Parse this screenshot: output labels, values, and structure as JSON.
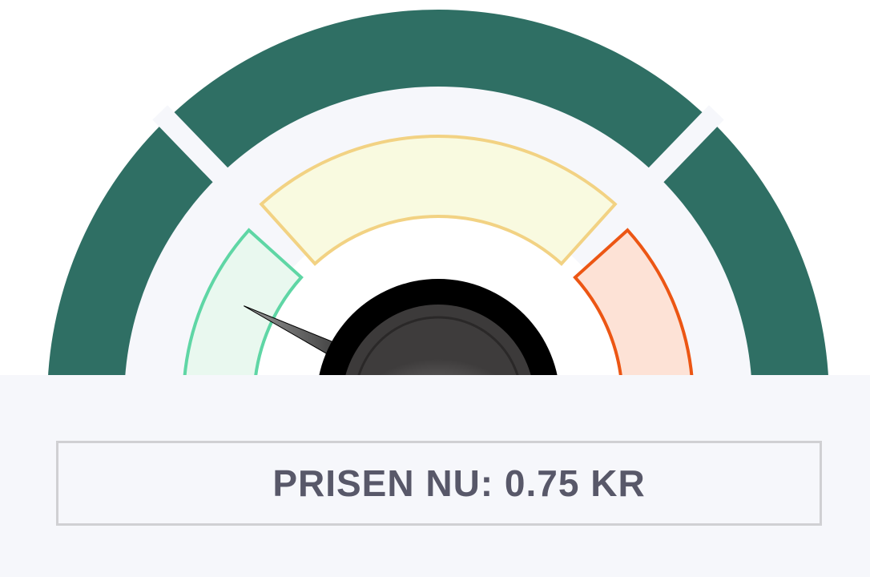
{
  "readout": {
    "label": "PRISEN NU:",
    "value": "0.75",
    "unit": "KR"
  },
  "gauge": {
    "needle_position": 0.1,
    "needle_icon": "gauge-needle-icon",
    "zones": [
      {
        "name": "low",
        "fill": "#e9f8ef",
        "stroke": "#5fd6a5"
      },
      {
        "name": "medium",
        "fill": "#f9fae0",
        "stroke": "#f2d283"
      },
      {
        "name": "high",
        "fill": "#fde2d6",
        "stroke": "#ec5614"
      }
    ],
    "outer_ring_color": "#2f6f64",
    "inner_background_color": "#f6f7fb"
  }
}
